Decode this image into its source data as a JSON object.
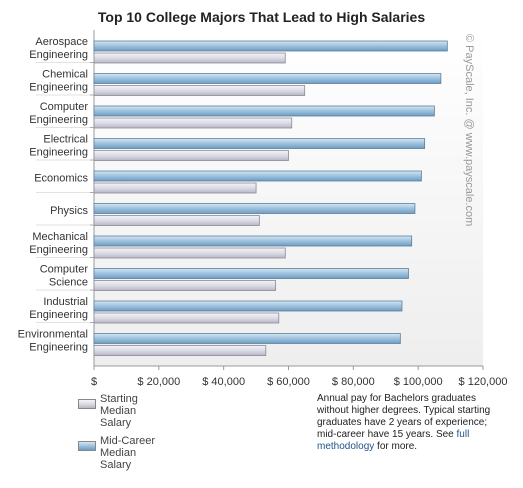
{
  "chart_data": {
    "type": "bar",
    "orientation": "horizontal",
    "title": "Top 10 College Majors That Lead to High Salaries",
    "categories": [
      [
        "Aerospace",
        "Engineering"
      ],
      [
        "Chemical",
        "Engineering"
      ],
      [
        "Computer",
        "Engineering"
      ],
      [
        "Electrical",
        "Engineering"
      ],
      [
        "Economics"
      ],
      [
        "Physics"
      ],
      [
        "Mechanical",
        "Engineering"
      ],
      [
        "Computer",
        "Science"
      ],
      [
        "Industrial",
        "Engineering"
      ],
      [
        "Environmental",
        "Engineering"
      ]
    ],
    "series": [
      {
        "name": "Mid-Career Median Salary",
        "color": "#8fb7d6",
        "values": [
          109000,
          107000,
          105000,
          102000,
          101000,
          99000,
          98000,
          97000,
          95000,
          94500
        ]
      },
      {
        "name": "Starting Median Salary",
        "color": "#d9d9e3",
        "values": [
          59000,
          65000,
          61000,
          60000,
          50000,
          51000,
          59000,
          56000,
          57000,
          53000
        ]
      }
    ],
    "xlim": [
      0,
      120000
    ],
    "xticks": [
      "$",
      "$ 20,000",
      "$ 40,000",
      "$ 60,000",
      "$ 80,000",
      "$ 100,000",
      "$ 120,000"
    ],
    "grid": false,
    "legend_position": "bottom-left"
  },
  "legend": {
    "starting": [
      "Starting",
      "Median",
      "Salary"
    ],
    "midcareer": [
      "Mid-Career",
      "Median",
      "Salary"
    ]
  },
  "note": {
    "text": "Annual pay for Bachelors graduates without higher degrees. Typical starting graduates have 2 years of experience; mid-career have 15 years. See ",
    "link": "full methodology",
    "tail": " for more."
  },
  "copyright": "© PayScale, Inc. @ www.payscale.com"
}
